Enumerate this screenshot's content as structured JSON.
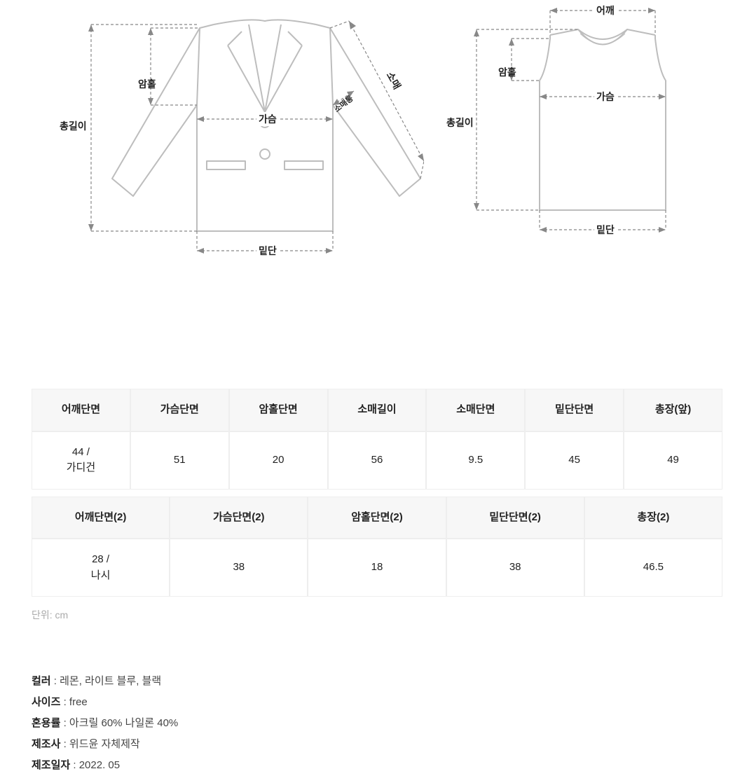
{
  "diagram": {
    "jacket": {
      "total_length": "총길이",
      "armhole": "암홀",
      "chest": "가슴",
      "sleeve": "소매",
      "sleeve_width": "소매통",
      "hem": "밑단"
    },
    "vest": {
      "shoulder": "어깨",
      "armhole": "암홀",
      "chest": "가슴",
      "total_length": "총길이",
      "hem": "밑단"
    }
  },
  "table1": {
    "columns": [
      "어깨단면",
      "가슴단면",
      "암홀단면",
      "소매길이",
      "소매단면",
      "밑단단면",
      "총장(앞)"
    ],
    "rows": [
      [
        "44 /\n가디건",
        "51",
        "20",
        "56",
        "9.5",
        "45",
        "49"
      ]
    ]
  },
  "table2": {
    "columns": [
      "어깨단면(2)",
      "가슴단면(2)",
      "암홀단면(2)",
      "밑단단면(2)",
      "총장(2)"
    ],
    "rows": [
      [
        "28 /\n나시",
        "38",
        "18",
        "38",
        "46.5"
      ]
    ]
  },
  "unit_note": "단위: cm",
  "details": {
    "color_label": "컬러",
    "color_value": "레몬, 라이트 블루, 블랙",
    "size_label": "사이즈",
    "size_value": "free",
    "material_label": "혼용률",
    "material_value": "아크릴 60% 나일론 40%",
    "maker_label": "제조사",
    "maker_value": "위드윤 자체제작",
    "date_label": "제조일자",
    "date_value": "2022. 05"
  },
  "style": {
    "diagram_stroke": "#bdbdbd",
    "dash_stroke": "#888888",
    "header_bg": "#f7f7f7",
    "border_color": "#eeeeee",
    "text_color": "#222222",
    "muted_color": "#aaaaaa"
  }
}
